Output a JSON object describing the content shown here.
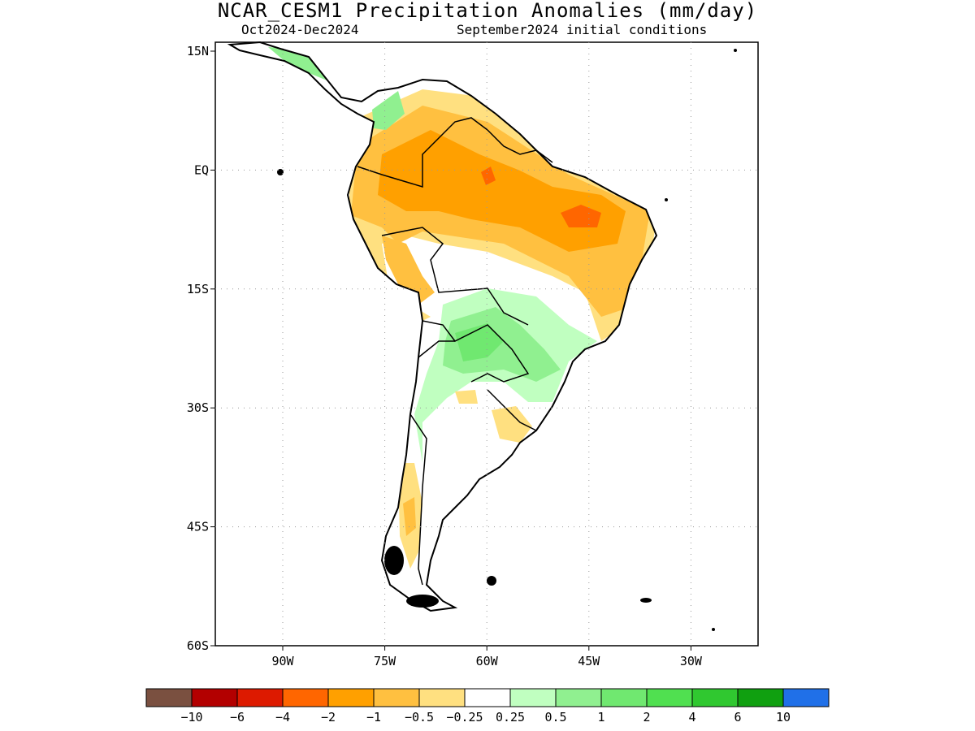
{
  "title": "NCAR_CESM1 Precipitation Anomalies (mm/day)",
  "subtitle_left": "Oct2024-Dec2024",
  "subtitle_right": "September2024 initial conditions",
  "map": {
    "lat_labels": [
      "15N",
      "EQ",
      "15S",
      "30S",
      "45S",
      "60S"
    ],
    "lon_labels": [
      "90W",
      "75W",
      "60W",
      "45W",
      "30W"
    ]
  },
  "colorbar": {
    "colors": [
      "#7a5040",
      "#b30000",
      "#dd1a00",
      "#ff6600",
      "#ffa000",
      "#ffc040",
      "#ffe080",
      "#ffffff",
      "#c0ffc0",
      "#90f090",
      "#70e870",
      "#50e050",
      "#30c830",
      "#10a010",
      "#2070e8"
    ],
    "labels": [
      "-10",
      "-6",
      "-4",
      "-2",
      "-1",
      "-0.5",
      "-0.25",
      "0.25",
      "0.5",
      "1",
      "2",
      "4",
      "6",
      "10"
    ]
  }
}
